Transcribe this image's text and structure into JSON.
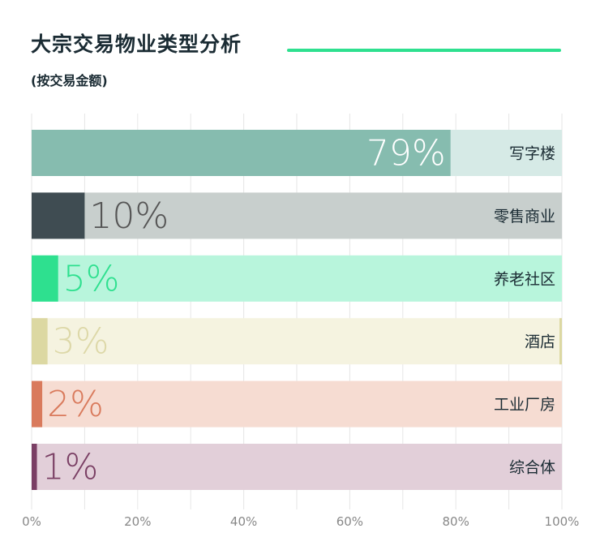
{
  "header": {
    "title": "大宗交易物业类型分析",
    "subtitle": "(按交易金额)"
  },
  "chart_data": {
    "type": "bar",
    "orientation": "horizontal",
    "title": "大宗交易物业类型分析",
    "subtitle": "(按交易金额)",
    "categories": [
      "写字楼",
      "零售商业",
      "养老社区",
      "酒店",
      "工业厂房",
      "综合体"
    ],
    "values": [
      79,
      10,
      5,
      3,
      2,
      1
    ],
    "value_labels": [
      "79%",
      "10%",
      "5%",
      "3%",
      "2%",
      "1%"
    ],
    "xlim": [
      0,
      100
    ],
    "x_ticks": [
      0,
      20,
      40,
      60,
      80,
      100
    ],
    "x_tick_labels": [
      "0%",
      "20%",
      "40%",
      "60%",
      "80%",
      "100%"
    ],
    "grid": true,
    "colors": {
      "fill": [
        "#86bcaf",
        "#3f4c52",
        "#2ee08f",
        "#dcd8a2",
        "#d97a5c",
        "#7a3f64"
      ],
      "track": [
        "#d6eae6",
        "#c8cfcd",
        "#b8f5dc",
        "#f5f3e0",
        "#f6dcd2",
        "#e2cfd9"
      ],
      "value_label": [
        "#ffffff",
        "#555555",
        "#2ee08f",
        "#ddd8a8",
        "#d97a5c",
        "#7a3f64"
      ],
      "category_label": "#1a2b33",
      "tick_label": "#888888",
      "grid": "#e6e6e6"
    }
  }
}
